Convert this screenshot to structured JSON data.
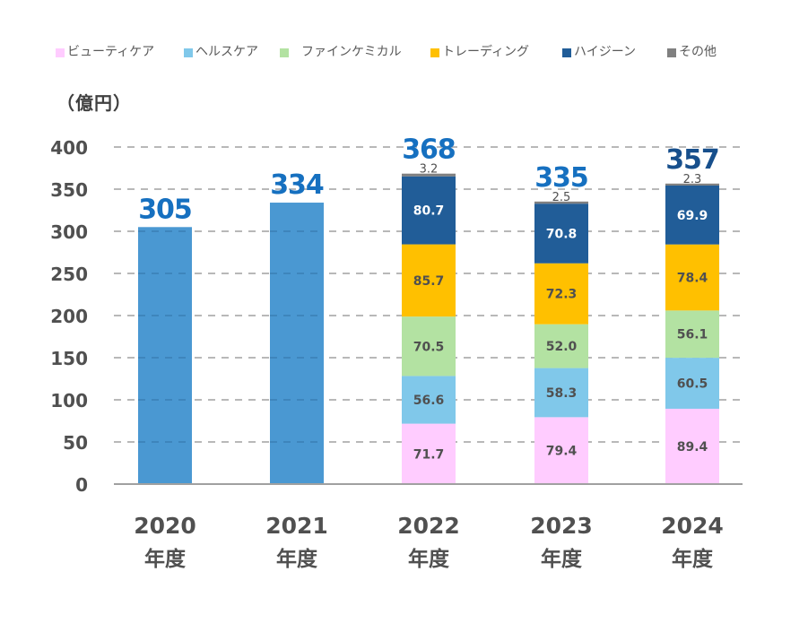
{
  "unit_label": "（億円）",
  "legend": [
    {
      "label": "ビューティケア",
      "color": "#ffccff"
    },
    {
      "label": "ヘルスケア",
      "color": "#80c8ea"
    },
    {
      "label": "ファインケミカル",
      "color": "#b3e2a2"
    },
    {
      "label": "トレーディング",
      "color": "#ffc000"
    },
    {
      "label": "ハイジーン",
      "color": "#215d98"
    },
    {
      "label": "その他",
      "color": "#808080"
    }
  ],
  "colors": {
    "total_bar": "#4a98d2",
    "total_label": "#1670c0",
    "total_label_2024": "#174f8c",
    "segment_label_dark": "#505050",
    "segment_label_light": "#ffffff",
    "axis": "#a0a0a0",
    "grid": "#a0a0a0",
    "tick_label": "#505050"
  },
  "chart_data": {
    "type": "bar",
    "stacked": true,
    "title": "",
    "xlabel": "",
    "ylabel": "（億円）",
    "ylim": [
      0,
      400
    ],
    "yticks": [
      0,
      50,
      100,
      150,
      200,
      250,
      300,
      350,
      400
    ],
    "grid": "horizontal-dashed",
    "legend_position": "top",
    "categories": [
      {
        "year": "2020",
        "suffix": "年度"
      },
      {
        "year": "2021",
        "suffix": "年度"
      },
      {
        "year": "2022",
        "suffix": "年度"
      },
      {
        "year": "2023",
        "suffix": "年度"
      },
      {
        "year": "2024",
        "suffix": "年度"
      }
    ],
    "totals": [
      305,
      334,
      368,
      335,
      357
    ],
    "total_only": [
      true,
      true,
      false,
      false,
      false
    ],
    "series": [
      {
        "name": "ビューティケア",
        "values": [
          null,
          null,
          71.7,
          79.4,
          89.4
        ],
        "label_color": "dark"
      },
      {
        "name": "ヘルスケア",
        "values": [
          null,
          null,
          56.6,
          58.3,
          60.5
        ],
        "label_color": "dark"
      },
      {
        "name": "ファインケミカル",
        "values": [
          null,
          null,
          70.5,
          52.0,
          56.1
        ],
        "label_color": "dark"
      },
      {
        "name": "トレーディング",
        "values": [
          null,
          null,
          85.7,
          72.3,
          78.4
        ],
        "label_color": "dark"
      },
      {
        "name": "ハイジーン",
        "values": [
          null,
          null,
          80.7,
          70.8,
          69.9
        ],
        "label_color": "light"
      },
      {
        "name": "その他",
        "values": [
          null,
          null,
          3.2,
          2.5,
          2.3
        ],
        "label_color": "outside"
      }
    ]
  }
}
